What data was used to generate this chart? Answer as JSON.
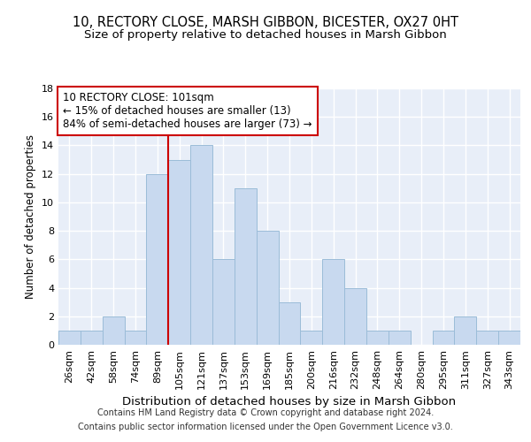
{
  "title": "10, RECTORY CLOSE, MARSH GIBBON, BICESTER, OX27 0HT",
  "subtitle": "Size of property relative to detached houses in Marsh Gibbon",
  "xlabel": "Distribution of detached houses by size in Marsh Gibbon",
  "ylabel": "Number of detached properties",
  "categories": [
    "26sqm",
    "42sqm",
    "58sqm",
    "74sqm",
    "89sqm",
    "105sqm",
    "121sqm",
    "137sqm",
    "153sqm",
    "169sqm",
    "185sqm",
    "200sqm",
    "216sqm",
    "232sqm",
    "248sqm",
    "264sqm",
    "280sqm",
    "295sqm",
    "311sqm",
    "327sqm",
    "343sqm"
  ],
  "values": [
    1,
    1,
    2,
    1,
    12,
    13,
    14,
    6,
    11,
    8,
    3,
    1,
    6,
    4,
    1,
    1,
    0,
    1,
    2,
    1,
    1
  ],
  "bar_color": "#c8d9ef",
  "bar_edge_color": "#9bbcd8",
  "vline_x_index": 4.5,
  "vline_color": "#cc0000",
  "annotation_line1": "10 RECTORY CLOSE: 101sqm",
  "annotation_line2": "← 15% of detached houses are smaller (13)",
  "annotation_line3": "84% of semi-detached houses are larger (73) →",
  "annotation_box_color": "white",
  "annotation_box_edge": "#cc0000",
  "ylim": [
    0,
    18
  ],
  "yticks": [
    0,
    2,
    4,
    6,
    8,
    10,
    12,
    14,
    16,
    18
  ],
  "background_color": "#e8eef8",
  "grid_color": "white",
  "footer1": "Contains HM Land Registry data © Crown copyright and database right 2024.",
  "footer2": "Contains public sector information licensed under the Open Government Licence v3.0.",
  "title_fontsize": 10.5,
  "subtitle_fontsize": 9.5,
  "xlabel_fontsize": 9.5,
  "ylabel_fontsize": 8.5,
  "tick_fontsize": 8,
  "annotation_fontsize": 8.5,
  "footer_fontsize": 7
}
